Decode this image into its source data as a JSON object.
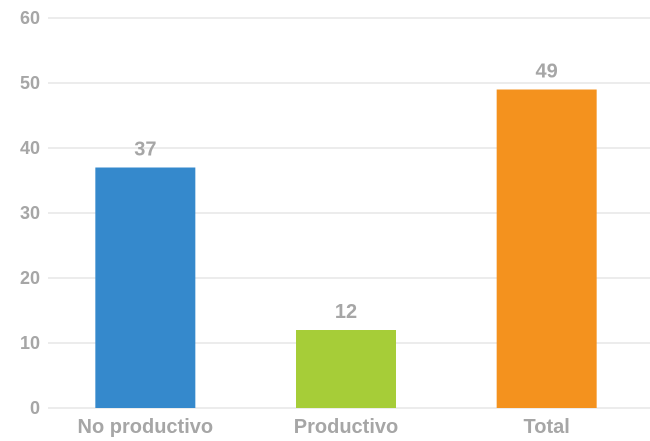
{
  "chart_data": {
    "type": "bar",
    "title": "",
    "xlabel": "",
    "ylabel": "",
    "categories": [
      "No productivo",
      "Productivo",
      "Total"
    ],
    "values": [
      37,
      12,
      49
    ],
    "data_labels": [
      "37",
      "12",
      "49"
    ],
    "bar_colors": [
      "#3589cc",
      "#a6cd38",
      "#f4921e"
    ],
    "ylim": [
      0,
      60
    ],
    "yticks": [
      0,
      10,
      20,
      30,
      40,
      50,
      60
    ],
    "ytick_labels": [
      "0",
      "10",
      "20",
      "30",
      "40",
      "50",
      "60"
    ],
    "grid": true,
    "legend": "none",
    "colors": {
      "grid": "#d9d9d9",
      "text": "#a6a6a6"
    }
  }
}
